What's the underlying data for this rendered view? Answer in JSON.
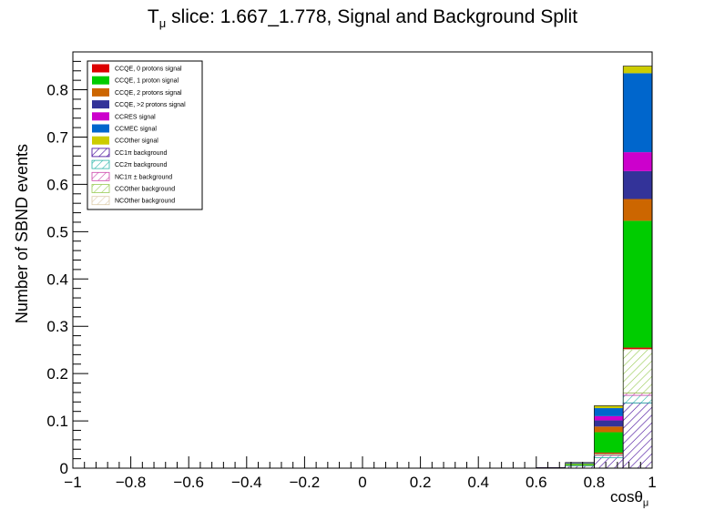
{
  "chart_data": {
    "type": "bar",
    "stacked": true,
    "title": "T",
    "title_sub": "μ",
    "title_rest": " slice: 1.667_1.778, Signal and Background Split",
    "xlabel": "cosθ",
    "xlabel_sub": "μ",
    "ylabel": "Number of SBND events",
    "xlim": [
      -1,
      1
    ],
    "ylim": [
      0,
      0.88
    ],
    "xticks": [
      -1,
      -0.8,
      -0.6,
      -0.4,
      -0.2,
      0,
      0.2,
      0.4,
      0.6,
      0.8,
      1
    ],
    "xtick_labels": [
      "−1",
      "−0.8",
      "−0.6",
      "−0.4",
      "−0.2",
      "0",
      "0.2",
      "0.4",
      "0.6",
      "0.8",
      "1"
    ],
    "yticks": [
      0,
      0.1,
      0.2,
      0.3,
      0.4,
      0.5,
      0.6,
      0.7,
      0.8
    ],
    "ytick_labels": [
      "0",
      "0.1",
      "0.2",
      "0.3",
      "0.4",
      "0.5",
      "0.6",
      "0.7",
      "0.8"
    ],
    "bins": [
      [
        0.6,
        0.7
      ],
      [
        0.7,
        0.8
      ],
      [
        0.8,
        0.9
      ],
      [
        0.9,
        1.0
      ]
    ],
    "series": [
      {
        "name": "CC1π background",
        "color": "#3d0097",
        "hatch": true,
        "values": [
          0.001,
          0.005,
          0.022,
          0.138
        ]
      },
      {
        "name": "CC2π background",
        "color": "#2bb4a8",
        "hatch": true,
        "values": [
          0.0,
          0.001,
          0.005,
          0.016
        ]
      },
      {
        "name": "NC1π ± background",
        "color": "#cc44aa",
        "hatch": true,
        "values": [
          0.0,
          0.0,
          0.002,
          0.005
        ]
      },
      {
        "name": "CCOther background",
        "color": "#99cc55",
        "hatch": true,
        "values": [
          0.0,
          0.001,
          0.002,
          0.092
        ]
      },
      {
        "name": "NCOther background",
        "color": "#ddccaa",
        "hatch": true,
        "values": [
          0.0,
          0.0,
          0.0,
          0.001
        ]
      },
      {
        "name": "CCQE, 0 protons signal",
        "color": "#dd0000",
        "hatch": false,
        "values": [
          0.0,
          0.0,
          0.002,
          0.003
        ]
      },
      {
        "name": "CCQE, 1 proton signal",
        "color": "#00cc00",
        "hatch": false,
        "values": [
          0.0,
          0.002,
          0.043,
          0.268
        ]
      },
      {
        "name": "CCQE, 2 protons signal",
        "color": "#cc6600",
        "hatch": false,
        "values": [
          0.0,
          0.001,
          0.012,
          0.046
        ]
      },
      {
        "name": "CCQE, >2 protons signal",
        "color": "#333399",
        "hatch": false,
        "values": [
          0.0,
          0.001,
          0.013,
          0.059
        ]
      },
      {
        "name": "CCRES signal",
        "color": "#cc00cc",
        "hatch": false,
        "values": [
          0.0,
          0.0,
          0.009,
          0.04
        ]
      },
      {
        "name": "CCMEC signal",
        "color": "#0066cc",
        "hatch": false,
        "values": [
          0.0,
          0.001,
          0.017,
          0.167
        ]
      },
      {
        "name": "CCOther signal",
        "color": "#cccc00",
        "hatch": false,
        "values": [
          0.0,
          0.0,
          0.005,
          0.015
        ]
      }
    ],
    "legend": {
      "placement": "top-left",
      "entries": [
        {
          "label": "CCQE, 0 protons signal",
          "color": "#dd0000",
          "hatch": false
        },
        {
          "label": "CCQE, 1 proton signal",
          "color": "#00cc00",
          "hatch": false
        },
        {
          "label": "CCQE, 2 protons signal",
          "color": "#cc6600",
          "hatch": false
        },
        {
          "label": "CCQE, >2 protons signal",
          "color": "#333399",
          "hatch": false
        },
        {
          "label": "CCRES signal",
          "color": "#cc00cc",
          "hatch": false
        },
        {
          "label": "CCMEC signal",
          "color": "#0066cc",
          "hatch": false
        },
        {
          "label": "CCOther signal",
          "color": "#cccc00",
          "hatch": false
        },
        {
          "label": "CC1π background",
          "color": "#3d0097",
          "hatch": true
        },
        {
          "label": "CC2π background",
          "color": "#2bb4a8",
          "hatch": true
        },
        {
          "label": "NC1π ± background",
          "color": "#cc44aa",
          "hatch": true
        },
        {
          "label": "CCOther background",
          "color": "#99cc55",
          "hatch": true
        },
        {
          "label": "NCOther background",
          "color": "#ddccaa",
          "hatch": true
        }
      ]
    }
  }
}
